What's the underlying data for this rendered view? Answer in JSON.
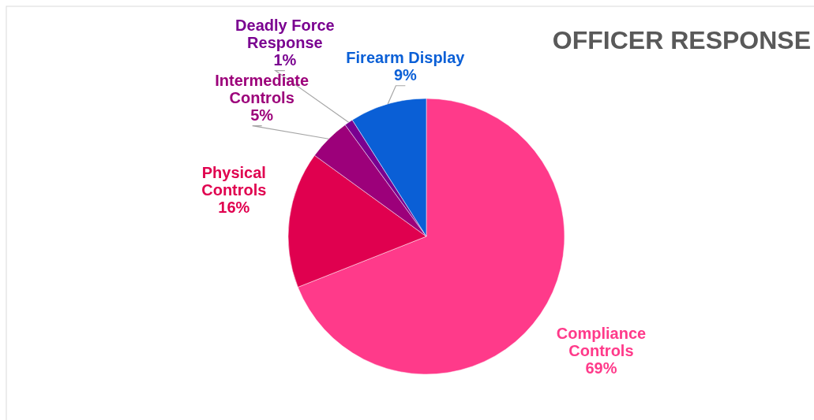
{
  "chart_data": {
    "type": "pie",
    "title": "OFFICER RESPONSE",
    "categories": [
      "Compliance Controls",
      "Physical Controls",
      "Intermediate Controls",
      "Deadly Force Response",
      "Firearm Display"
    ],
    "values": [
      69,
      16,
      5,
      1,
      9
    ],
    "colors": [
      "#ff3a8a",
      "#e0004f",
      "#9c007a",
      "#7a0090",
      "#0a5fd6"
    ],
    "value_labels": [
      "69%",
      "16%",
      "5%",
      "1%",
      "9%"
    ]
  }
}
